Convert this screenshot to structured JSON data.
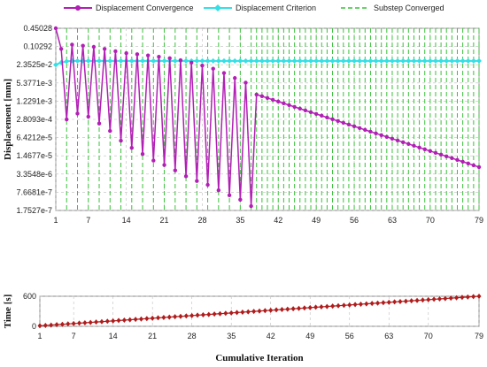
{
  "chart_data": [
    {
      "type": "line",
      "ylabel": "Displacement [mm]",
      "yscale": "log",
      "xlim": [
        1,
        79
      ],
      "x_ticks": [
        "1",
        "7",
        "14",
        "21",
        "28",
        "35",
        "42",
        "49",
        "56",
        "63",
        "70",
        "79"
      ],
      "y_ticks": [
        "0.45028",
        "0.10292",
        "2.3525e-2",
        "5.3771e-3",
        "1.2291e-3",
        "2.8093e-4",
        "6.4212e-5",
        "1.4677e-5",
        "3.3548e-6",
        "7.6681e-7",
        "1.7527e-7"
      ],
      "legend_placement": "top",
      "grid": true,
      "colors": {
        "convergence": "#b21fb5",
        "criterion": "#33e0e6",
        "substep": "#39c239",
        "grid": "#bfbfbf"
      },
      "series": [
        {
          "name": "Displacement Convergence",
          "x": [
            1,
            2,
            3,
            4,
            5,
            6,
            7,
            8,
            9,
            10,
            11,
            12,
            13,
            14,
            15,
            16,
            17,
            18,
            19,
            20,
            21,
            22,
            23,
            24,
            25,
            26,
            27,
            28,
            29,
            30,
            31,
            32,
            33,
            34,
            35,
            36,
            37,
            38,
            39,
            40,
            41,
            42,
            43,
            44,
            45,
            46,
            47,
            48,
            49,
            50,
            51,
            52,
            53,
            54,
            55,
            56,
            57,
            58,
            59,
            60,
            61,
            62,
            63,
            64,
            65,
            66,
            67,
            68,
            69,
            70,
            71,
            72,
            73,
            74,
            75,
            76,
            77,
            78,
            79
          ],
          "y": [
            0.45028,
            0.085,
            0.00028,
            0.12,
            0.00045,
            0.11,
            0.00035,
            0.1,
            0.0002,
            0.085,
            0.00011,
            0.07,
            5e-05,
            0.06,
            2.8e-05,
            0.055,
            1.7e-05,
            0.05,
            1e-05,
            0.045,
            7e-06,
            0.04,
            4.5e-06,
            0.034,
            2.8e-06,
            0.028,
            1.9e-06,
            0.022,
            1.4e-06,
            0.017,
            9e-07,
            0.012,
            6e-07,
            0.008,
            4.2e-07,
            0.0055,
            2.5e-07,
            0.0021,
            0.00183,
            0.00159,
            0.00138,
            0.00119,
            0.00103,
            0.000892,
            0.000773,
            0.00067,
            0.00058,
            0.000503,
            0.000436,
            0.000378,
            0.000327,
            0.000284,
            0.000246,
            0.000213,
            0.000185,
            0.00016,
            0.000139,
            0.00012,
            0.000104,
            9.04e-05,
            7.83e-05,
            6.78e-05,
            5.88e-05,
            5.1e-05,
            4.42e-05,
            3.83e-05,
            3.32e-05,
            2.87e-05,
            2.49e-05,
            2.16e-05,
            1.87e-05,
            1.62e-05,
            1.4e-05,
            1.22e-05,
            1.05e-05,
            9.1e-06,
            7.9e-06,
            6.8e-06,
            5.9e-06
          ]
        },
        {
          "name": "Displacement Criterion",
          "x": [
            1,
            2,
            3,
            4,
            5,
            6,
            7,
            8,
            9,
            10,
            11,
            12,
            13,
            14,
            15,
            16,
            17,
            18,
            19,
            20,
            21,
            22,
            23,
            24,
            25,
            26,
            27,
            28,
            29,
            30,
            31,
            32,
            33,
            34,
            35,
            36,
            37,
            38,
            39,
            40,
            41,
            42,
            43,
            44,
            45,
            46,
            47,
            48,
            49,
            50,
            51,
            52,
            53,
            54,
            55,
            56,
            57,
            58,
            59,
            60,
            61,
            62,
            63,
            64,
            65,
            66,
            67,
            68,
            69,
            70,
            71,
            72,
            73,
            74,
            75,
            76,
            77,
            78,
            79
          ],
          "y": [
            0.0235,
            0.028,
            0.031,
            0.032,
            0.032,
            0.032,
            0.032,
            0.032,
            0.032,
            0.032,
            0.032,
            0.032,
            0.032,
            0.032,
            0.032,
            0.032,
            0.032,
            0.032,
            0.032,
            0.032,
            0.032,
            0.032,
            0.032,
            0.032,
            0.032,
            0.032,
            0.032,
            0.032,
            0.032,
            0.032,
            0.032,
            0.032,
            0.032,
            0.032,
            0.032,
            0.032,
            0.032,
            0.032,
            0.032,
            0.032,
            0.032,
            0.032,
            0.032,
            0.032,
            0.032,
            0.032,
            0.032,
            0.032,
            0.032,
            0.032,
            0.032,
            0.032,
            0.032,
            0.032,
            0.032,
            0.032,
            0.032,
            0.032,
            0.032,
            0.032,
            0.032,
            0.032,
            0.032,
            0.032,
            0.032,
            0.032,
            0.032,
            0.032,
            0.032,
            0.032,
            0.032,
            0.032,
            0.032,
            0.032,
            0.032,
            0.032,
            0.032,
            0.032,
            0.032
          ]
        },
        {
          "name": "Substep Converged",
          "x": [
            3,
            5,
            7,
            9,
            11,
            13,
            15,
            17,
            19,
            21,
            23,
            25,
            27,
            29,
            31,
            33,
            35,
            37,
            38,
            39,
            40,
            41,
            42,
            43,
            44,
            45,
            46,
            47,
            48,
            49,
            50,
            51,
            52,
            53,
            54,
            55,
            56,
            57,
            58,
            59,
            60,
            61,
            62,
            63,
            64,
            65,
            66,
            67,
            68,
            69,
            70,
            71,
            72,
            73,
            74,
            75,
            76,
            77,
            78,
            79
          ]
        }
      ]
    },
    {
      "type": "line",
      "xlabel": "Cumulative Iteration",
      "ylabel": "Time [s]",
      "xlim": [
        1,
        79
      ],
      "ylim": [
        0,
        600
      ],
      "x_ticks": [
        "1",
        "7",
        "14",
        "21",
        "28",
        "35",
        "42",
        "49",
        "56",
        "63",
        "70",
        "79"
      ],
      "y_ticks": [
        "0",
        "600"
      ],
      "grid": true,
      "colors": {
        "time": "#b01c1c"
      },
      "series": [
        {
          "name": "Time",
          "x": [
            1,
            79
          ],
          "y": [
            10,
            600
          ]
        }
      ]
    }
  ]
}
